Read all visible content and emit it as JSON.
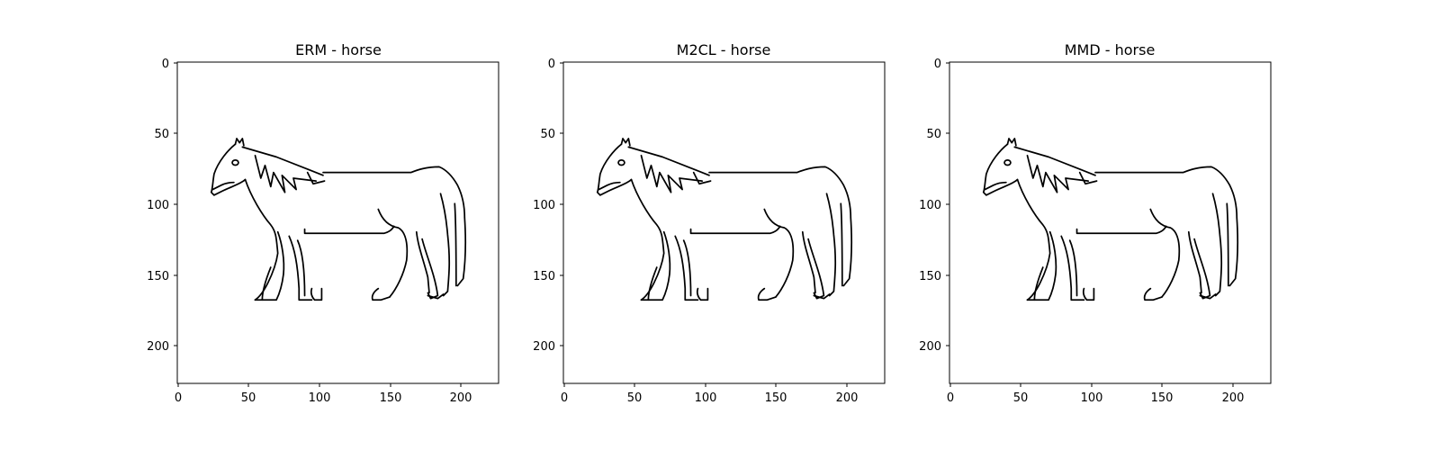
{
  "figure": {
    "panels": [
      {
        "title": "ERM - horse",
        "xticks": [
          "0",
          "50",
          "100",
          "150",
          "200"
        ],
        "yticks": [
          "0",
          "50",
          "100",
          "150",
          "200"
        ]
      },
      {
        "title": "M2CL - horse",
        "xticks": [
          "0",
          "50",
          "100",
          "150",
          "200"
        ],
        "yticks": [
          "0",
          "50",
          "100",
          "150",
          "200"
        ]
      },
      {
        "title": "MMD - horse",
        "xticks": [
          "0",
          "50",
          "100",
          "150",
          "200"
        ],
        "yticks": [
          "0",
          "50",
          "100",
          "150",
          "200"
        ]
      }
    ]
  }
}
